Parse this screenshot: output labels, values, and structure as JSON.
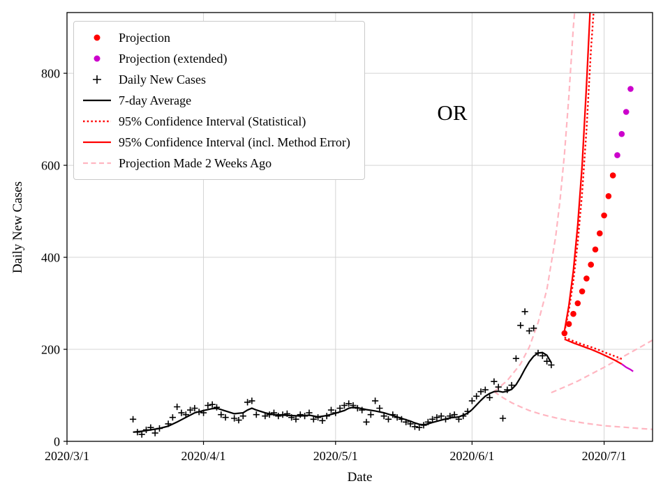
{
  "chart_data": {
    "type": "line",
    "title": "",
    "annotation": {
      "text": "OR",
      "x_day": 87.5,
      "y_value": 714
    },
    "xlabel": "Date",
    "ylabel": "Daily New Cases",
    "x_axis": {
      "tick_days": [
        0,
        31,
        61,
        92,
        122
      ],
      "tick_labels": [
        "2020/3/1",
        "2020/4/1",
        "2020/5/1",
        "2020/6/1",
        "2020/7/1"
      ],
      "xlim_days": [
        0,
        133
      ]
    },
    "y_axis": {
      "ticks": [
        0,
        200,
        400,
        600,
        800
      ],
      "ylim": [
        0,
        932
      ]
    },
    "grid": true,
    "palette": {
      "red": "#ff0000",
      "magenta": "#cc00cc",
      "pink": "#ffb6c1",
      "black": "#000000"
    },
    "legend": {
      "position": "upper-left",
      "entries": [
        {
          "label": "Projection",
          "marker": "dot",
          "color": "#ff0000"
        },
        {
          "label": "Projection (extended)",
          "marker": "dot",
          "color": "#cc00cc"
        },
        {
          "label": "Daily New Cases",
          "marker": "plus",
          "color": "#000000"
        },
        {
          "label": "7-day Average",
          "marker": "line-solid",
          "color": "#000000"
        },
        {
          "label": "95% Confidence Interval (Statistical)",
          "marker": "line-dotted",
          "color": "#ff0000"
        },
        {
          "label": "95% Confidence Interval (incl. Method Error)",
          "marker": "line-solid",
          "color": "#ff0000"
        },
        {
          "label": "Projection Made 2 Weeks Ago",
          "marker": "line-dashed",
          "color": "#ffb6c1"
        }
      ]
    },
    "series": [
      {
        "name": "old-projection-upper-ci",
        "legend": "Projection Made 2 Weeks Ago",
        "kind": "line",
        "style": "dashed",
        "color": "#ffb6c1",
        "width": 2.2,
        "data": [
          [
            97,
            108
          ],
          [
            100,
            132
          ],
          [
            103,
            168
          ],
          [
            105,
            205
          ],
          [
            107,
            258
          ],
          [
            109,
            330
          ],
          [
            111,
            445
          ],
          [
            112,
            525
          ],
          [
            113,
            625
          ],
          [
            114,
            750
          ],
          [
            115,
            900
          ],
          [
            115.3,
            932
          ]
        ]
      },
      {
        "name": "old-projection-lower-ci",
        "kind": "line",
        "style": "dashed",
        "color": "#ffb6c1",
        "width": 2.2,
        "data": [
          [
            97,
            108
          ],
          [
            99,
            95
          ],
          [
            101,
            84
          ],
          [
            103,
            75
          ],
          [
            105,
            67
          ],
          [
            108,
            58
          ],
          [
            111,
            51
          ],
          [
            114,
            45
          ],
          [
            118,
            39
          ],
          [
            122,
            34
          ],
          [
            126,
            31
          ],
          [
            130,
            28
          ],
          [
            133,
            26
          ]
        ]
      },
      {
        "name": "old-projection-median",
        "kind": "line",
        "style": "dashed",
        "color": "#ffb6c1",
        "width": 2.2,
        "data": [
          [
            110,
            106
          ],
          [
            113,
            118
          ],
          [
            116,
            131
          ],
          [
            119,
            146
          ],
          [
            122,
            161
          ],
          [
            125,
            177
          ],
          [
            128,
            193
          ],
          [
            131,
            209
          ],
          [
            133,
            220
          ]
        ]
      },
      {
        "name": "ci-statistical-upper",
        "legend": "95% Confidence Interval (Statistical)",
        "kind": "line",
        "style": "dotted",
        "color": "#ff0000",
        "width": 2.4,
        "data": [
          [
            113,
            238
          ],
          [
            114,
            285
          ],
          [
            115,
            348
          ],
          [
            116,
            432
          ],
          [
            117,
            540
          ],
          [
            118,
            678
          ],
          [
            119,
            850
          ],
          [
            119.6,
            932
          ]
        ]
      },
      {
        "name": "ci-statistical-lower",
        "kind": "line",
        "style": "dotted",
        "color": "#ff0000",
        "width": 2.4,
        "data": [
          [
            113,
            226
          ],
          [
            115,
            218
          ],
          [
            117,
            211
          ],
          [
            119,
            205
          ],
          [
            121,
            198
          ],
          [
            123,
            190
          ],
          [
            125,
            183
          ],
          [
            126,
            179
          ]
        ]
      },
      {
        "name": "ci-method-upper",
        "legend": "95% Confidence Interval (incl. Method Error)",
        "kind": "line",
        "style": "solid",
        "color": "#ff0000",
        "width": 2.3,
        "data": [
          [
            113,
            240
          ],
          [
            114,
            295
          ],
          [
            115,
            370
          ],
          [
            116,
            470
          ],
          [
            117,
            600
          ],
          [
            118,
            775
          ],
          [
            118.8,
            932
          ]
        ]
      },
      {
        "name": "ci-method-lower",
        "kind": "line",
        "style": "solid",
        "color": "#ff0000",
        "width": 2.3,
        "data": [
          [
            113,
            222
          ],
          [
            115,
            214
          ],
          [
            117,
            207
          ],
          [
            119,
            200
          ],
          [
            121,
            192
          ],
          [
            123,
            183
          ],
          [
            124.5,
            176
          ],
          [
            126,
            168
          ]
        ]
      },
      {
        "name": "ci-method-lower-extended",
        "kind": "line",
        "style": "solid",
        "color": "#cc00cc",
        "width": 2.3,
        "data": [
          [
            126,
            168
          ],
          [
            127,
            161
          ],
          [
            128,
            156
          ],
          [
            128.6,
            152
          ]
        ]
      },
      {
        "name": "seven-day-average",
        "legend": "7-day Average",
        "kind": "line",
        "style": "solid",
        "color": "#000000",
        "width": 2.2,
        "data": [
          [
            15,
            20
          ],
          [
            17,
            22
          ],
          [
            19,
            25
          ],
          [
            21,
            28
          ],
          [
            23,
            33
          ],
          [
            25,
            42
          ],
          [
            27,
            52
          ],
          [
            29,
            62
          ],
          [
            31,
            67
          ],
          [
            33,
            71
          ],
          [
            34,
            72
          ],
          [
            36,
            66
          ],
          [
            38,
            60
          ],
          [
            40,
            62
          ],
          [
            41,
            68
          ],
          [
            42,
            72
          ],
          [
            43,
            68
          ],
          [
            45,
            62
          ],
          [
            47,
            58
          ],
          [
            49,
            57
          ],
          [
            51,
            56
          ],
          [
            53,
            55
          ],
          [
            55,
            57
          ],
          [
            57,
            53
          ],
          [
            59,
            56
          ],
          [
            61,
            61
          ],
          [
            63,
            67
          ],
          [
            64,
            72
          ],
          [
            65,
            74
          ],
          [
            66,
            73
          ],
          [
            68,
            69
          ],
          [
            70,
            66
          ],
          [
            72,
            62
          ],
          [
            74,
            56
          ],
          [
            76,
            50
          ],
          [
            78,
            44
          ],
          [
            79,
            40
          ],
          [
            80,
            37
          ],
          [
            81,
            36
          ],
          [
            82,
            38
          ],
          [
            83,
            41
          ],
          [
            85,
            46
          ],
          [
            87,
            51
          ],
          [
            89,
            53
          ],
          [
            91,
            61
          ],
          [
            92,
            69
          ],
          [
            93,
            79
          ],
          [
            94,
            89
          ],
          [
            95,
            98
          ],
          [
            96,
            104
          ],
          [
            97,
            108
          ],
          [
            98,
            109
          ],
          [
            99,
            107
          ],
          [
            100,
            109
          ],
          [
            101,
            113
          ],
          [
            102,
            123
          ],
          [
            103,
            139
          ],
          [
            104,
            157
          ],
          [
            105,
            173
          ],
          [
            106,
            185
          ],
          [
            107,
            192
          ],
          [
            108,
            193
          ],
          [
            109,
            187
          ],
          [
            110,
            171
          ]
        ]
      },
      {
        "name": "daily-new-cases",
        "legend": "Daily New Cases",
        "kind": "scatter-plus",
        "color": "#000000",
        "size": 4.6,
        "data": [
          [
            15,
            48
          ],
          [
            16,
            20
          ],
          [
            17,
            15
          ],
          [
            18,
            25
          ],
          [
            19,
            30
          ],
          [
            20,
            18
          ],
          [
            21,
            28
          ],
          [
            23,
            38
          ],
          [
            24,
            52
          ],
          [
            25,
            75
          ],
          [
            26,
            62
          ],
          [
            27,
            58
          ],
          [
            28,
            68
          ],
          [
            29,
            72
          ],
          [
            30,
            64
          ],
          [
            31,
            62
          ],
          [
            32,
            78
          ],
          [
            33,
            80
          ],
          [
            34,
            74
          ],
          [
            35,
            58
          ],
          [
            36,
            52
          ],
          [
            38,
            50
          ],
          [
            39,
            46
          ],
          [
            40,
            55
          ],
          [
            41,
            85
          ],
          [
            42,
            88
          ],
          [
            43,
            58
          ],
          [
            45,
            55
          ],
          [
            46,
            58
          ],
          [
            47,
            62
          ],
          [
            48,
            55
          ],
          [
            49,
            58
          ],
          [
            50,
            60
          ],
          [
            51,
            52
          ],
          [
            52,
            48
          ],
          [
            53,
            58
          ],
          [
            54,
            55
          ],
          [
            55,
            62
          ],
          [
            56,
            48
          ],
          [
            57,
            52
          ],
          [
            58,
            45
          ],
          [
            59,
            55
          ],
          [
            60,
            68
          ],
          [
            61,
            62
          ],
          [
            62,
            72
          ],
          [
            63,
            78
          ],
          [
            64,
            82
          ],
          [
            65,
            78
          ],
          [
            66,
            72
          ],
          [
            67,
            68
          ],
          [
            68,
            42
          ],
          [
            69,
            58
          ],
          [
            70,
            88
          ],
          [
            71,
            72
          ],
          [
            72,
            55
          ],
          [
            73,
            48
          ],
          [
            74,
            58
          ],
          [
            75,
            52
          ],
          [
            76,
            48
          ],
          [
            77,
            42
          ],
          [
            78,
            38
          ],
          [
            79,
            32
          ],
          [
            80,
            30
          ],
          [
            81,
            35
          ],
          [
            82,
            42
          ],
          [
            83,
            48
          ],
          [
            84,
            52
          ],
          [
            85,
            55
          ],
          [
            86,
            48
          ],
          [
            87,
            55
          ],
          [
            88,
            58
          ],
          [
            89,
            48
          ],
          [
            90,
            55
          ],
          [
            91,
            65
          ],
          [
            92,
            88
          ],
          [
            93,
            98
          ],
          [
            94,
            108
          ],
          [
            95,
            112
          ],
          [
            96,
            95
          ],
          [
            97,
            130
          ],
          [
            98,
            118
          ],
          [
            99,
            50
          ],
          [
            100,
            112
          ],
          [
            101,
            122
          ],
          [
            102,
            180
          ],
          [
            103,
            252
          ],
          [
            104,
            282
          ],
          [
            105,
            240
          ],
          [
            106,
            246
          ],
          [
            107,
            192
          ],
          [
            108,
            186
          ],
          [
            109,
            174
          ],
          [
            110,
            166
          ]
        ]
      },
      {
        "name": "projection",
        "legend": "Projection",
        "kind": "scatter-dot",
        "color": "#ff0000",
        "size": 4.3,
        "data": [
          [
            113,
            235
          ],
          [
            114,
            255
          ],
          [
            115,
            277
          ],
          [
            116,
            300
          ],
          [
            117,
            326
          ],
          [
            118,
            354
          ],
          [
            119,
            384
          ],
          [
            120,
            417
          ],
          [
            121,
            452
          ],
          [
            122,
            491
          ],
          [
            123,
            533
          ],
          [
            124,
            578
          ]
        ]
      },
      {
        "name": "projection-extended",
        "legend": "Projection (extended)",
        "kind": "scatter-dot",
        "color": "#cc00cc",
        "size": 4.3,
        "data": [
          [
            125,
            622
          ],
          [
            126,
            668
          ],
          [
            127,
            716
          ],
          [
            128,
            766
          ]
        ]
      }
    ]
  }
}
